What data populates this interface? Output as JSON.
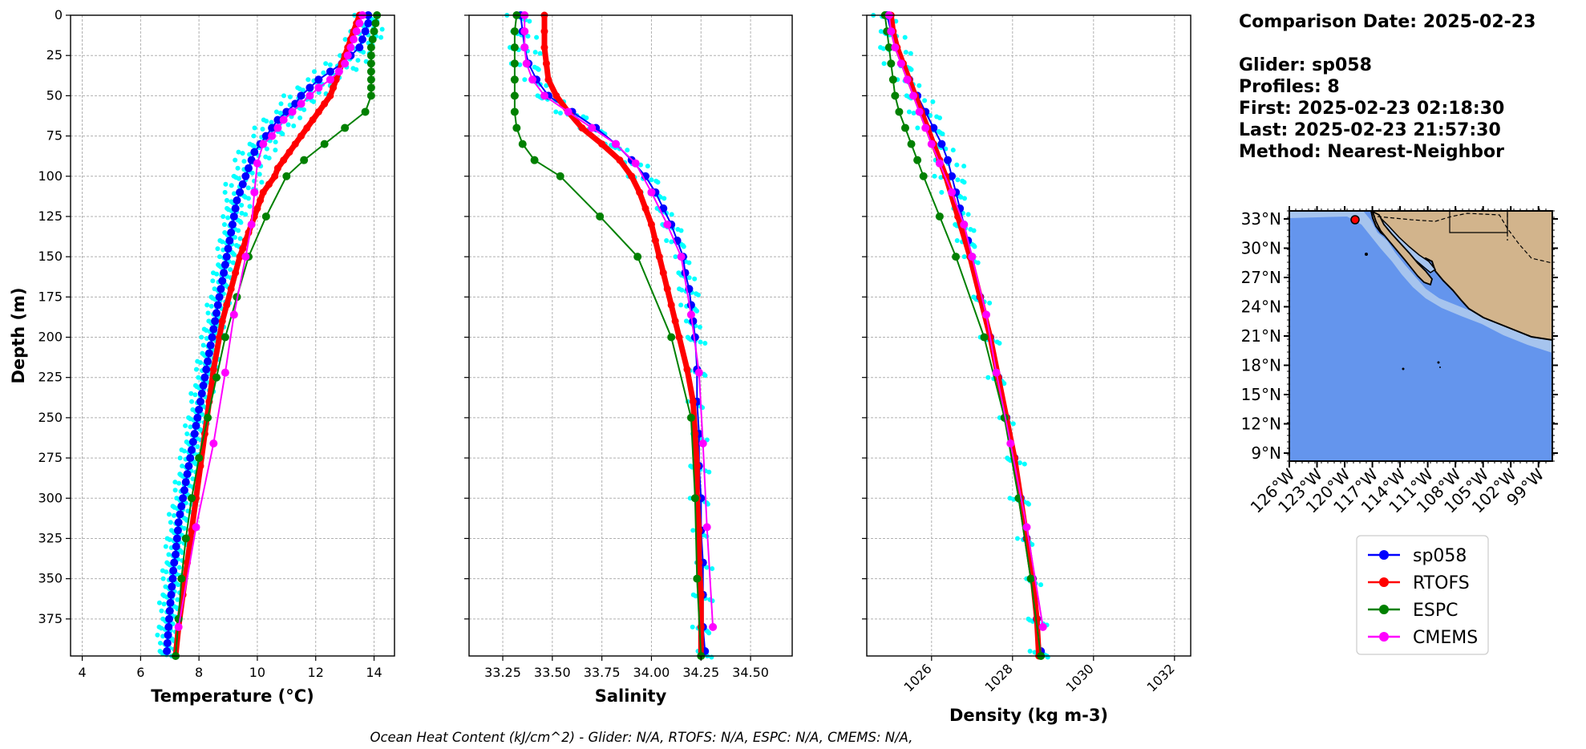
{
  "info": {
    "comparison_date": "Comparison Date: 2025-02-23",
    "glider": "Glider: sp058",
    "profiles": "Profiles: 8",
    "first": "First: 2025-02-23 02:18:30",
    "last": "Last: 2025-02-23 21:57:30",
    "method": "Method: Nearest-Neighbor"
  },
  "footer": "Ocean Heat Content (kJ/cm^2) - Glider: N/A,  RTOFS: N/A,  ESPC: N/A,  CMEMS: N/A,",
  "legend": [
    {
      "label": "sp058",
      "color": "#0000ff"
    },
    {
      "label": "RTOFS",
      "color": "#ff0000"
    },
    {
      "label": "ESPC",
      "color": "#008000"
    },
    {
      "label": "CMEMS",
      "color": "#ff00ff"
    }
  ],
  "colors": {
    "glider": "#0000ff",
    "glider_profiles": "#00ffff",
    "rtofs": "#ff0000",
    "espc": "#008000",
    "cmems": "#ff00ff",
    "ocean": "#6495ed",
    "shelf": "#a6c4ee",
    "land": "#d2b48c"
  },
  "chart_data": [
    {
      "type": "line",
      "xlabel": "Temperature (°C)",
      "ylabel": "Depth (m)",
      "xlim": [
        3.6,
        14.7
      ],
      "ylim": [
        398,
        0
      ],
      "xticks": [
        4,
        6,
        8,
        10,
        12,
        14
      ],
      "yticks": [
        0,
        25,
        50,
        75,
        100,
        125,
        150,
        175,
        200,
        225,
        250,
        275,
        300,
        325,
        350,
        375
      ],
      "grid": true,
      "series": [
        {
          "name": "sp058",
          "depth": [
            0,
            5,
            10,
            15,
            20,
            25,
            30,
            35,
            40,
            45,
            50,
            55,
            60,
            65,
            70,
            75,
            80,
            85,
            90,
            95,
            100,
            105,
            110,
            115,
            120,
            125,
            130,
            135,
            140,
            145,
            150,
            155,
            160,
            165,
            170,
            175,
            180,
            185,
            190,
            195,
            200,
            205,
            210,
            215,
            220,
            225,
            230,
            235,
            240,
            245,
            250,
            255,
            260,
            265,
            270,
            275,
            280,
            285,
            290,
            295,
            300,
            305,
            310,
            315,
            320,
            325,
            330,
            335,
            340,
            345,
            350,
            355,
            360,
            365,
            370,
            375,
            380,
            385,
            390,
            395
          ],
          "values": [
            13.8,
            13.8,
            13.7,
            13.6,
            13.5,
            13.2,
            12.9,
            12.5,
            12.1,
            11.8,
            11.5,
            11.3,
            11.0,
            10.7,
            10.5,
            10.3,
            10.1,
            9.9,
            9.8,
            9.7,
            9.6,
            9.5,
            9.4,
            9.3,
            9.25,
            9.2,
            9.15,
            9.1,
            9.05,
            9.0,
            8.95,
            8.9,
            8.85,
            8.8,
            8.75,
            8.7,
            8.65,
            8.6,
            8.55,
            8.5,
            8.45,
            8.4,
            8.35,
            8.3,
            8.25,
            8.2,
            8.15,
            8.1,
            8.05,
            8.0,
            7.95,
            7.9,
            7.85,
            7.8,
            7.75,
            7.7,
            7.65,
            7.6,
            7.55,
            7.5,
            7.45,
            7.4,
            7.35,
            7.3,
            7.28,
            7.25,
            7.22,
            7.2,
            7.15,
            7.12,
            7.1,
            7.07,
            7.05,
            7.02,
            7.0,
            6.98,
            6.96,
            6.94,
            6.92,
            6.9
          ]
        },
        {
          "name": "RTOFS",
          "depth": [
            0,
            5,
            10,
            15,
            20,
            25,
            30,
            35,
            40,
            45,
            50,
            55,
            60,
            65,
            70,
            75,
            80,
            85,
            90,
            95,
            100,
            105,
            110,
            115,
            120,
            125,
            130,
            135,
            140,
            145,
            150,
            160,
            170,
            180,
            190,
            200,
            220,
            240,
            260,
            280,
            300,
            320,
            340,
            360,
            380,
            398
          ],
          "values": [
            13.5,
            13.4,
            13.3,
            13.2,
            13.1,
            13.0,
            12.9,
            12.8,
            12.7,
            12.6,
            12.5,
            12.3,
            12.1,
            11.9,
            11.7,
            11.5,
            11.3,
            11.1,
            10.9,
            10.7,
            10.6,
            10.4,
            10.2,
            10.1,
            10.0,
            9.9,
            9.8,
            9.7,
            9.6,
            9.5,
            9.4,
            9.25,
            9.1,
            8.95,
            8.8,
            8.7,
            8.5,
            8.35,
            8.2,
            8.05,
            7.9,
            7.75,
            7.6,
            7.45,
            7.3,
            7.2
          ]
        },
        {
          "name": "ESPC",
          "depth": [
            0,
            5,
            10,
            15,
            20,
            25,
            30,
            35,
            40,
            45,
            50,
            60,
            70,
            80,
            90,
            100,
            125,
            150,
            175,
            200,
            225,
            250,
            275,
            300,
            325,
            350,
            375,
            398
          ],
          "values": [
            14.1,
            14.05,
            14.0,
            13.95,
            13.9,
            13.9,
            13.9,
            13.9,
            13.9,
            13.9,
            13.9,
            13.7,
            13.0,
            12.3,
            11.6,
            11.0,
            10.3,
            9.7,
            9.3,
            8.9,
            8.6,
            8.3,
            8.0,
            7.75,
            7.55,
            7.4,
            7.3,
            7.2
          ]
        },
        {
          "name": "CMEMS",
          "depth": [
            0,
            5,
            10,
            15,
            20,
            25,
            30,
            35,
            40,
            45,
            50,
            55,
            60,
            65,
            70,
            75,
            80,
            92,
            110,
            130,
            150,
            186,
            222,
            266,
            318,
            380
          ],
          "values": [
            13.6,
            13.5,
            13.4,
            13.3,
            13.2,
            13.1,
            13.0,
            12.8,
            12.5,
            12.1,
            11.8,
            11.5,
            11.2,
            10.9,
            10.7,
            10.5,
            10.2,
            10.0,
            9.9,
            9.8,
            9.6,
            9.2,
            8.9,
            8.5,
            7.9,
            7.3
          ]
        }
      ]
    },
    {
      "type": "line",
      "xlabel": "Salinity",
      "xlim": [
        33.08,
        34.71
      ],
      "ylim": [
        398,
        0
      ],
      "xticks": [
        33.25,
        33.5,
        33.75,
        34.0,
        34.25,
        34.5
      ],
      "xticklabels": [
        "33.25",
        "33.50",
        "33.75",
        "34.00",
        "34.25",
        "34.50"
      ],
      "grid": true,
      "series": [
        {
          "name": "sp058",
          "depth": [
            0,
            10,
            20,
            30,
            40,
            50,
            60,
            70,
            80,
            90,
            100,
            110,
            120,
            130,
            140,
            150,
            160,
            170,
            180,
            190,
            200,
            220,
            240,
            260,
            280,
            300,
            320,
            340,
            360,
            380,
            395
          ],
          "values": [
            33.34,
            33.35,
            33.36,
            33.38,
            33.42,
            33.48,
            33.6,
            33.72,
            33.82,
            33.9,
            33.97,
            34.02,
            34.06,
            34.1,
            34.13,
            34.16,
            34.17,
            34.19,
            34.2,
            34.21,
            34.22,
            34.23,
            34.23,
            34.24,
            34.24,
            34.25,
            34.25,
            34.26,
            34.26,
            34.26,
            34.27
          ]
        },
        {
          "name": "RTOFS",
          "depth": [
            0,
            10,
            20,
            30,
            40,
            50,
            60,
            70,
            80,
            90,
            100,
            110,
            120,
            130,
            140,
            150,
            160,
            170,
            180,
            190,
            200,
            220,
            240,
            260,
            280,
            300,
            320,
            340,
            360,
            380,
            398
          ],
          "values": [
            33.46,
            33.46,
            33.46,
            33.47,
            33.48,
            33.52,
            33.58,
            33.65,
            33.75,
            33.84,
            33.9,
            33.94,
            33.97,
            34.0,
            34.02,
            34.04,
            34.06,
            34.08,
            34.1,
            34.12,
            34.14,
            34.18,
            34.21,
            34.22,
            34.23,
            34.23,
            34.24,
            34.24,
            34.25,
            34.25,
            34.25
          ]
        },
        {
          "name": "ESPC",
          "depth": [
            0,
            10,
            20,
            30,
            40,
            50,
            60,
            70,
            80,
            90,
            100,
            125,
            150,
            200,
            250,
            300,
            350,
            398
          ],
          "values": [
            33.32,
            33.31,
            33.31,
            33.31,
            33.31,
            33.31,
            33.31,
            33.32,
            33.35,
            33.41,
            33.54,
            33.74,
            33.93,
            34.1,
            34.2,
            34.22,
            34.23,
            34.25
          ]
        },
        {
          "name": "CMEMS",
          "depth": [
            0,
            10,
            20,
            30,
            40,
            50,
            60,
            70,
            80,
            92,
            110,
            130,
            150,
            186,
            222,
            266,
            318,
            380
          ],
          "values": [
            33.36,
            33.36,
            33.36,
            33.37,
            33.4,
            33.46,
            33.58,
            33.7,
            33.82,
            33.92,
            34.0,
            34.08,
            34.15,
            34.2,
            34.24,
            34.26,
            34.28,
            34.31
          ]
        }
      ]
    },
    {
      "type": "line",
      "xlabel": "Density (kg m-3)",
      "xlim": [
        1024.4,
        1032.4
      ],
      "ylim": [
        398,
        0
      ],
      "xticks": [
        1026,
        1028,
        1030,
        1032
      ],
      "grid": true,
      "series": [
        {
          "name": "sp058",
          "depth": [
            0,
            10,
            20,
            30,
            40,
            50,
            60,
            70,
            80,
            90,
            100,
            110,
            120,
            130,
            140,
            150,
            175,
            200,
            225,
            250,
            275,
            300,
            325,
            350,
            375,
            395
          ],
          "values": [
            1024.9,
            1025.0,
            1025.1,
            1025.25,
            1025.45,
            1025.65,
            1025.85,
            1026.05,
            1026.25,
            1026.4,
            1026.5,
            1026.6,
            1026.7,
            1026.8,
            1026.9,
            1027.0,
            1027.2,
            1027.45,
            1027.65,
            1027.85,
            1028.05,
            1028.2,
            1028.35,
            1028.5,
            1028.6,
            1028.7
          ]
        },
        {
          "name": "RTOFS",
          "depth": [
            0,
            10,
            20,
            30,
            40,
            50,
            60,
            70,
            80,
            90,
            100,
            125,
            150,
            175,
            200,
            225,
            250,
            275,
            300,
            325,
            350,
            375,
            398
          ],
          "values": [
            1025.0,
            1025.05,
            1025.15,
            1025.3,
            1025.45,
            1025.6,
            1025.75,
            1025.9,
            1026.05,
            1026.2,
            1026.35,
            1026.65,
            1026.95,
            1027.2,
            1027.45,
            1027.65,
            1027.85,
            1028.05,
            1028.2,
            1028.35,
            1028.5,
            1028.6,
            1028.65
          ]
        },
        {
          "name": "ESPC",
          "depth": [
            0,
            10,
            20,
            30,
            40,
            50,
            60,
            70,
            80,
            90,
            100,
            125,
            150,
            200,
            250,
            300,
            350,
            398
          ],
          "values": [
            1024.85,
            1024.9,
            1024.95,
            1025.0,
            1025.05,
            1025.1,
            1025.2,
            1025.35,
            1025.5,
            1025.65,
            1025.8,
            1026.2,
            1026.6,
            1027.3,
            1027.8,
            1028.15,
            1028.45,
            1028.7
          ]
        },
        {
          "name": "CMEMS",
          "depth": [
            0,
            10,
            20,
            30,
            40,
            50,
            60,
            70,
            80,
            92,
            110,
            130,
            150,
            186,
            222,
            266,
            318,
            380
          ],
          "values": [
            1024.95,
            1025.0,
            1025.1,
            1025.25,
            1025.4,
            1025.55,
            1025.7,
            1025.85,
            1026.0,
            1026.2,
            1026.5,
            1026.8,
            1027.0,
            1027.35,
            1027.6,
            1027.95,
            1028.35,
            1028.75
          ]
        }
      ]
    }
  ],
  "map": {
    "lat_labels": [
      "33°N",
      "30°N",
      "27°N",
      "24°N",
      "21°N",
      "18°N",
      "15°N",
      "12°N",
      "9°N"
    ],
    "lon_labels": [
      "126°W",
      "123°W",
      "120°W",
      "117°W",
      "114°W",
      "111°W",
      "108°W",
      "105°W",
      "102°W",
      "99°W"
    ]
  }
}
